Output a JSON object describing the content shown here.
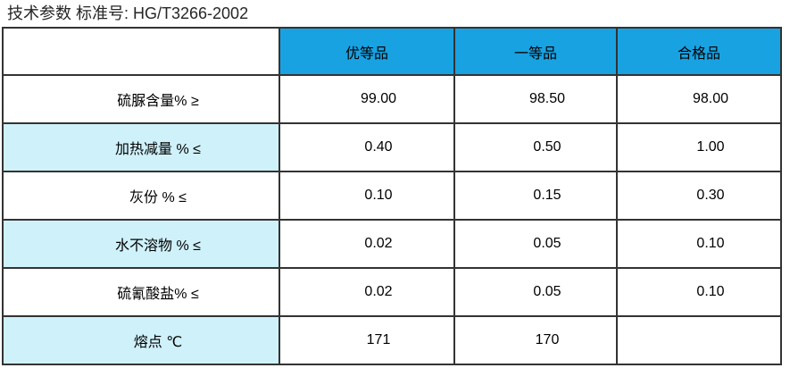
{
  "title": "技术参数 标准号: HG/T3266-2002",
  "colors": {
    "header_bg": "#18A2E2",
    "stripe_bg": "#CFF1FA",
    "border": "#333333",
    "header_text": "#000000",
    "title_text": "#262626"
  },
  "table": {
    "columns": [
      "",
      "优等品",
      "一等品",
      "合格品"
    ],
    "rows": [
      {
        "label": "硫脲含量% ≥",
        "values": [
          "99.00",
          "98.50",
          "98.00"
        ]
      },
      {
        "label": "加热减量 % ≤",
        "values": [
          "0.40",
          "0.50",
          "1.00"
        ]
      },
      {
        "label": "灰份 % ≤",
        "values": [
          "0.10",
          "0.15",
          "0.30"
        ]
      },
      {
        "label": "水不溶物 % ≤",
        "values": [
          "0.02",
          "0.05",
          "0.10"
        ]
      },
      {
        "label": "硫氰酸盐% ≤",
        "values": [
          "0.02",
          "0.05",
          "0.10"
        ]
      },
      {
        "label": "熔点 ℃",
        "values": [
          "171",
          "170",
          ""
        ]
      }
    ]
  }
}
